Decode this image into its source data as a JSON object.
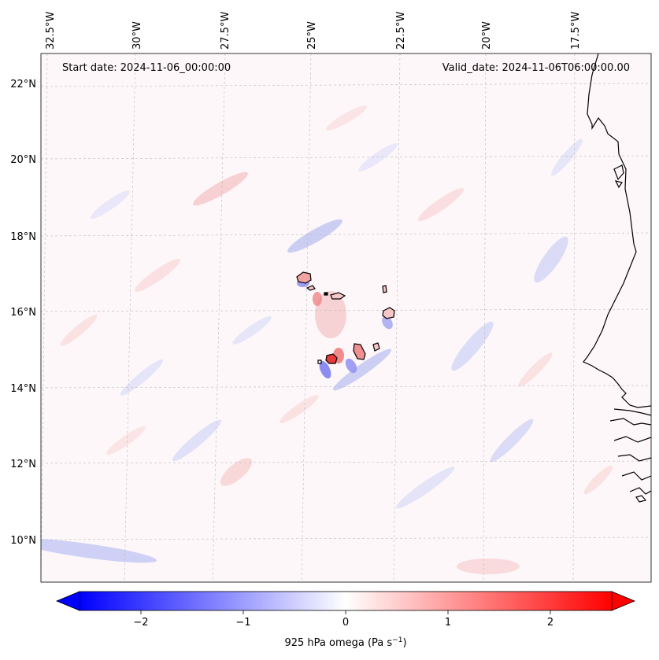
{
  "header": {
    "start_date": "Start date: 2024-11-06_00:00:00",
    "valid_date": "Valid_date: 2024-11-06T06:00:00.00"
  },
  "map": {
    "lon_labels": [
      "32.5°W",
      "30°W",
      "27.5°W",
      "25°W",
      "22.5°W",
      "20°W",
      "17.5°W"
    ],
    "lat_labels": [
      "22°N",
      "20°N",
      "18°N",
      "16°N",
      "14°N",
      "12°N",
      "10°N"
    ],
    "coastline_color": "#000000",
    "gridline_color": "#bbbbbb"
  },
  "colorbar": {
    "label_text": "925 hPa omega (Pa s",
    "label_exponent": "−1",
    "label_close": ")",
    "ticks": [
      "−2",
      "−1",
      "0",
      "1",
      "2"
    ],
    "tick_values": [
      -2,
      -1,
      0,
      1,
      2
    ],
    "range": [
      -2.6,
      2.6
    ],
    "low_color": "#0000ff",
    "mid_color": "#ffffff",
    "high_color": "#ff0000",
    "extend": "both"
  }
}
